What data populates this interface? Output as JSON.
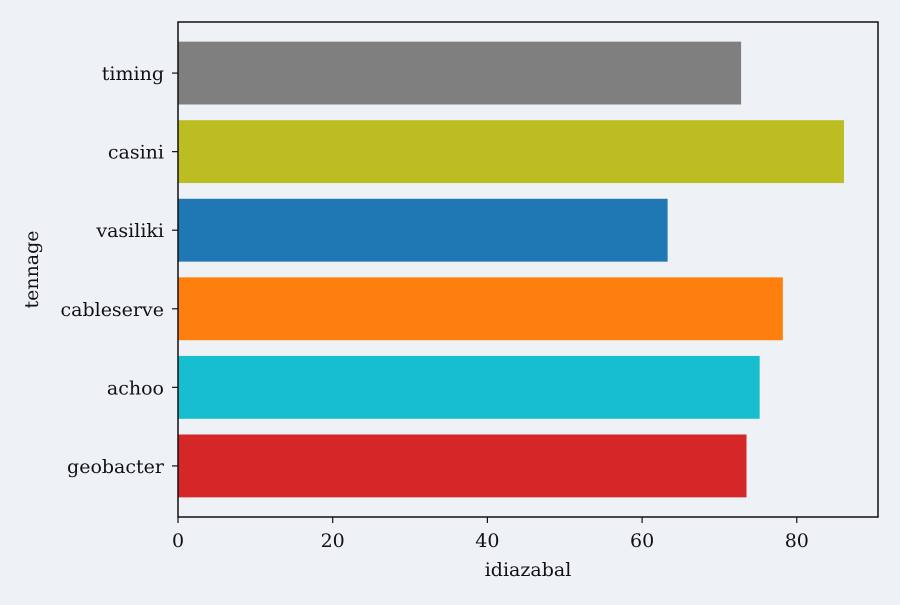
{
  "chart_data": {
    "type": "bar",
    "orientation": "horizontal",
    "title": "",
    "xlabel": "idiazabal",
    "ylabel": "tennage",
    "xlim": [
      0,
      90.5
    ],
    "xticks": [
      0,
      20,
      40,
      60,
      80
    ],
    "grid": false,
    "categories": [
      "geobacter",
      "achoo",
      "cableserve",
      "vasiliki",
      "casini",
      "timing"
    ],
    "values": [
      73.5,
      75.2,
      78.2,
      63.3,
      86.1,
      72.8
    ],
    "colors": [
      "#d62728",
      "#17becf",
      "#ff7f0e",
      "#1f77b4",
      "#bcbd22",
      "#7f7f7f"
    ]
  }
}
